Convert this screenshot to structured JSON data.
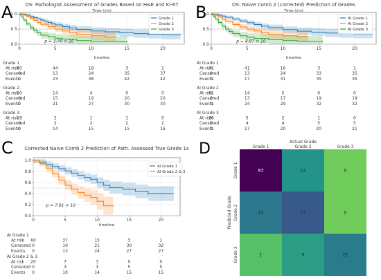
{
  "panel_letters": [
    "A",
    "B",
    "C",
    "D"
  ],
  "chart_data": [
    {
      "id": "A",
      "type": "line",
      "step": true,
      "title": "OS: Pathologist Assessment of Grades Based on H&E and Ki-67",
      "xlabel_top": "Time (yrs)",
      "xlabel": "timeline",
      "xlim": [
        0,
        23
      ],
      "ylim": [
        0,
        1.05
      ],
      "xticks": [
        0,
        5,
        10,
        15,
        20
      ],
      "yticks": [
        0,
        0.5,
        1.0
      ],
      "ytick_labels": [
        "0.0",
        "0.5",
        "1.0"
      ],
      "median_line": 0.5,
      "legend_position": "top-right",
      "annotation": "p = 1.70 × 10",
      "series": [
        {
          "name": "Grade 1",
          "color": "#1f77b4",
          "x": [
            0,
            0.5,
            1,
            1.5,
            2,
            2.5,
            3,
            3.5,
            4,
            4.5,
            5,
            6,
            7,
            8,
            10,
            12,
            14,
            16,
            18,
            20,
            22.5
          ],
          "y": [
            1,
            0.99,
            0.96,
            0.92,
            0.88,
            0.84,
            0.8,
            0.76,
            0.72,
            0.68,
            0.64,
            0.58,
            0.54,
            0.49,
            0.44,
            0.41,
            0.38,
            0.35,
            0.33,
            0.31,
            0.31
          ]
        },
        {
          "name": "Grade 2",
          "color": "#ff7f0e",
          "x": [
            0,
            0.5,
            1,
            1.5,
            2,
            2.5,
            3,
            4,
            5,
            6,
            7,
            8,
            10,
            12,
            13.5
          ],
          "y": [
            1,
            0.97,
            0.92,
            0.86,
            0.79,
            0.72,
            0.66,
            0.58,
            0.5,
            0.44,
            0.38,
            0.33,
            0.28,
            0.24,
            0.24
          ]
        },
        {
          "name": "Grade 3",
          "color": "#2ca02c",
          "x": [
            0,
            0.3,
            0.6,
            1,
            1.5,
            2,
            2.5,
            3,
            4,
            5,
            6,
            8,
            10,
            12,
            14,
            15
          ],
          "y": [
            1,
            0.9,
            0.8,
            0.67,
            0.55,
            0.45,
            0.38,
            0.3,
            0.25,
            0.2,
            0.17,
            0.12,
            0.1,
            0.09,
            0.08,
            0.08
          ]
        }
      ],
      "risk_table": {
        "times": [
          "0",
          "5",
          "10",
          "15",
          "20"
        ],
        "groups": [
          {
            "name": "Grade 1",
            "rows": [
              {
                "label": "At risk",
                "values": [
                  "80",
                  "44",
                  "18",
                  "3",
                  "1"
                ]
              },
              {
                "label": "Censored",
                "values": [
                  "0",
                  "13",
                  "24",
                  "35",
                  "37"
                ]
              },
              {
                "label": "Events",
                "values": [
                  "0",
                  "23",
                  "38",
                  "42",
                  "42"
                ]
              }
            ]
          },
          {
            "name": "Grade 2",
            "rows": [
              {
                "label": "At risk",
                "values": [
                  "50",
                  "14",
                  "4",
                  "0",
                  "0"
                ]
              },
              {
                "label": "Censored",
                "values": [
                  "0",
                  "15",
                  "19",
                  "20",
                  "20"
                ]
              },
              {
                "label": "Events",
                "values": [
                  "0",
                  "21",
                  "27",
                  "30",
                  "30"
                ]
              }
            ]
          },
          {
            "name": "Grade 3",
            "rows": [
              {
                "label": "At risk",
                "values": [
                  "18",
                  "2",
                  "1",
                  "1",
                  "0"
                ]
              },
              {
                "label": "Censored",
                "values": [
                  "0",
                  "2",
                  "2",
                  "2",
                  "2"
                ]
              },
              {
                "label": "Events",
                "values": [
                  "0",
                  "14",
                  "15",
                  "15",
                  "16"
                ]
              }
            ]
          }
        ]
      }
    },
    {
      "id": "B",
      "type": "line",
      "step": true,
      "title": "OS: Naive Comb 2 (corrected) Prediction of Grades",
      "xlabel_top": "Time (yrs)",
      "xlabel": "timeline",
      "xlim": [
        0,
        23
      ],
      "ylim": [
        0,
        1.05
      ],
      "xticks": [
        0,
        5,
        10,
        15,
        20
      ],
      "yticks": [
        0,
        0.5,
        1.0
      ],
      "ytick_labels": [
        "0.0",
        "0.5",
        "1.0"
      ],
      "median_line": 0.5,
      "legend_position": "top-right",
      "annotation": "p = 8.87 × 10",
      "series": [
        {
          "name": "AI Grade 1",
          "color": "#1f77b4",
          "x": [
            0,
            0.5,
            1,
            1.5,
            2,
            3,
            4,
            5,
            6,
            7,
            8,
            10,
            12,
            14,
            16,
            18,
            20,
            22.5
          ],
          "y": [
            1,
            0.99,
            0.96,
            0.93,
            0.89,
            0.83,
            0.77,
            0.71,
            0.65,
            0.6,
            0.55,
            0.48,
            0.43,
            0.4,
            0.37,
            0.35,
            0.34,
            0.34
          ]
        },
        {
          "name": "AI Grade 2",
          "color": "#ff7f0e",
          "x": [
            0,
            0.5,
            1,
            1.5,
            2,
            3,
            4,
            5,
            6,
            7,
            8,
            10,
            12,
            13.5
          ],
          "y": [
            1,
            0.96,
            0.9,
            0.83,
            0.76,
            0.65,
            0.57,
            0.5,
            0.44,
            0.38,
            0.33,
            0.28,
            0.25,
            0.25
          ]
        },
        {
          "name": "AI Grade 3",
          "color": "#2ca02c",
          "x": [
            0,
            0.3,
            0.6,
            1,
            1.5,
            2,
            2.5,
            3,
            4,
            5,
            6,
            8,
            10,
            12,
            14,
            15.5
          ],
          "y": [
            1,
            0.92,
            0.83,
            0.72,
            0.6,
            0.5,
            0.42,
            0.35,
            0.28,
            0.23,
            0.19,
            0.15,
            0.12,
            0.1,
            0.09,
            0.09
          ]
        }
      ],
      "risk_table": {
        "times": [
          "0",
          "5",
          "10",
          "15",
          "20"
        ],
        "groups": [
          {
            "name": "AI Grade 1",
            "rows": [
              {
                "label": "At risk",
                "values": [
                  "71",
                  "41",
                  "16",
                  "3",
                  "1"
                ]
              },
              {
                "label": "Censored",
                "values": [
                  "0",
                  "13",
                  "24",
                  "33",
                  "35"
                ]
              },
              {
                "label": "Events",
                "values": [
                  "0",
                  "17",
                  "31",
                  "35",
                  "35"
                ]
              }
            ]
          },
          {
            "name": "AI Grade 2",
            "rows": [
              {
                "label": "At risk",
                "values": [
                  "51",
                  "14",
                  "5",
                  "0",
                  "0"
                ]
              },
              {
                "label": "Censored",
                "values": [
                  "0",
                  "13",
                  "17",
                  "19",
                  "19"
                ]
              },
              {
                "label": "Events",
                "values": [
                  "0",
                  "24",
                  "29",
                  "32",
                  "32"
                ]
              }
            ]
          },
          {
            "name": "AI Grade 3",
            "rows": [
              {
                "label": "At risk",
                "values": [
                  "26",
                  "5",
                  "2",
                  "1",
                  "0"
                ]
              },
              {
                "label": "Censored",
                "values": [
                  "0",
                  "4",
                  "4",
                  "5",
                  "5"
                ]
              },
              {
                "label": "Events",
                "values": [
                  "0",
                  "17",
                  "20",
                  "20",
                  "21"
                ]
              }
            ]
          }
        ]
      }
    },
    {
      "id": "C",
      "type": "line",
      "step": true,
      "title": "Corrected Naive Comb 2 Prediction of Path. Assessed True Grade 1s",
      "xlabel": "timeline",
      "xlim": [
        0,
        23
      ],
      "ylim": [
        0,
        1.05
      ],
      "xticks": [
        0,
        5,
        10,
        15,
        20
      ],
      "yticks": [
        0,
        0.2,
        0.4,
        0.6,
        0.8,
        1.0
      ],
      "ytick_labels": [
        "0.0",
        "0.2",
        "0.4",
        "0.6",
        "0.8",
        "1.0"
      ],
      "median_line": 0.5,
      "legend_position": "top-right",
      "annotation": "p = 7.01 × 10",
      "series": [
        {
          "name": "AI Grade 1",
          "color": "#1f77b4",
          "x": [
            0,
            1,
            2,
            3,
            4,
            5,
            6,
            7,
            8,
            9,
            10,
            11,
            12,
            14,
            16,
            18,
            20,
            22
          ],
          "y": [
            1,
            0.97,
            0.93,
            0.89,
            0.85,
            0.81,
            0.77,
            0.73,
            0.69,
            0.66,
            0.6,
            0.55,
            0.51,
            0.48,
            0.44,
            0.4,
            0.4,
            0.4
          ]
        },
        {
          "name": "AI Grade 2 & 3",
          "color": "#ff7f0e",
          "x": [
            0,
            1,
            2,
            3,
            4,
            5,
            6,
            7,
            8,
            9,
            10,
            11,
            12.5
          ],
          "y": [
            1,
            0.94,
            0.86,
            0.76,
            0.64,
            0.55,
            0.48,
            0.42,
            0.37,
            0.33,
            0.26,
            0.18,
            0.18
          ]
        }
      ],
      "risk_table": {
        "times": [
          "0",
          "5",
          "10",
          "15",
          "20"
        ],
        "groups": [
          {
            "name": "AI Grade 1",
            "rows": [
              {
                "label": "At risk",
                "values": [
                  "60",
                  "37",
                  "15",
                  "3",
                  "1"
                ]
              },
              {
                "label": "Censored",
                "values": [
                  "0",
                  "10",
                  "21",
                  "30",
                  "32"
                ]
              },
              {
                "label": "Events",
                "values": [
                  "0",
                  "13",
                  "24",
                  "27",
                  "27"
                ]
              }
            ]
          },
          {
            "name": "AI Grade 2 & 3",
            "rows": [
              {
                "label": "At risk",
                "values": [
                  "20",
                  "7",
                  "3",
                  "0",
                  "0"
                ]
              },
              {
                "label": "Censored",
                "values": [
                  "0",
                  "3",
                  "3",
                  "5",
                  "5"
                ]
              },
              {
                "label": "Events",
                "values": [
                  "0",
                  "10",
                  "14",
                  "15",
                  "15"
                ]
              }
            ]
          }
        ]
      }
    },
    {
      "id": "D",
      "type": "heatmap",
      "title": "Actual Grade",
      "ylabel": "Predicted Grade",
      "col_labels": [
        "Grade 1",
        "Grade 2",
        "Grade 3"
      ],
      "row_labels": [
        "Grade 1",
        "Grade 2",
        "Grade 3"
      ],
      "values": [
        [
          83,
          12,
          0
        ],
        [
          23,
          37,
          0
        ],
        [
          1,
          9,
          21
        ]
      ],
      "value_labels": [
        [
          "83",
          "12",
          "0"
        ],
        [
          "23",
          "37",
          "0"
        ],
        [
          "1",
          "9",
          "21"
        ]
      ],
      "colormap": "viridis",
      "vmax": 83
    }
  ]
}
